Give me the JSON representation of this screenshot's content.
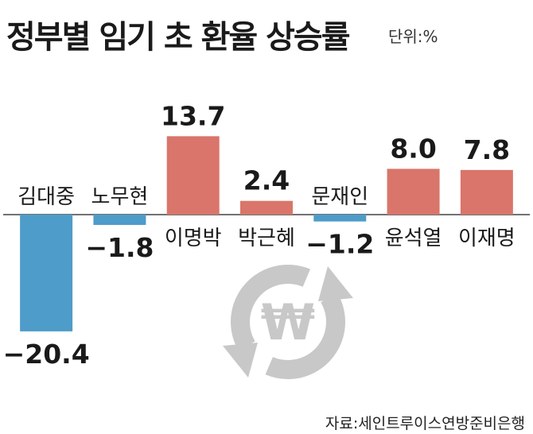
{
  "header": {
    "title": "정부별 임기 초 환율 상승률",
    "unit": "단위:%",
    "source": "자료:세인트루이스연방준비은행"
  },
  "colors": {
    "positive": "#d9756a",
    "negative": "#4e9cc9",
    "axis": "#444444",
    "emblem": "#c8c8c8"
  },
  "emblem": {
    "icon": "won-currency-exchange-icon",
    "symbol": "₩"
  },
  "chart_data": {
    "type": "bar",
    "categories": [
      "김대중",
      "노무현",
      "이명박",
      "박근혜",
      "문재인",
      "윤석열",
      "이재명"
    ],
    "values": [
      -20.4,
      -1.8,
      13.7,
      2.4,
      -1.2,
      8.0,
      7.8
    ],
    "value_labels": [
      "−20.4",
      "−1.8",
      "13.7",
      "2.4",
      "−1.2",
      "8.0",
      "7.8"
    ],
    "title": "정부별 임기 초 환율 상승률",
    "unit": "단위:%",
    "ylim": [
      -20.4,
      13.7
    ],
    "grid": false
  }
}
